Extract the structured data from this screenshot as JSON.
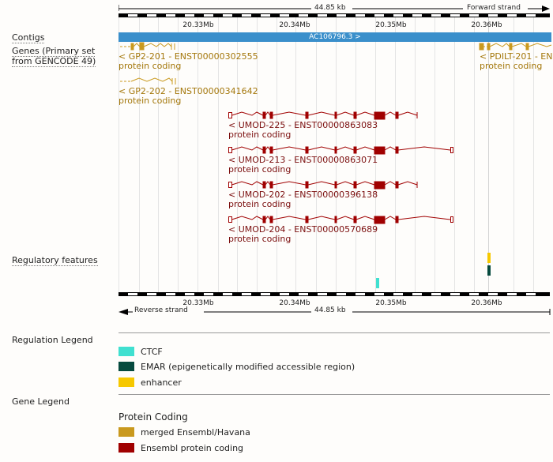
{
  "scale": {
    "span_label": "44.85 kb",
    "forward_strand": "Forward strand",
    "reverse_strand": "Reverse strand",
    "ticks": [
      "20.33Mb",
      "20.34Mb",
      "20.35Mb",
      "20.36Mb"
    ]
  },
  "tracks": {
    "contigs": "Contigs",
    "genes": "Genes (Primary set from GENCODE 49)",
    "regulatory": "Regulatory features"
  },
  "contig": {
    "label": "AC106796.3 >"
  },
  "genes": [
    {
      "name": "< GP2-201 - ENST00000302555",
      "biotype": "protein coding"
    },
    {
      "name": "< GP2-202 - ENST00000341642",
      "biotype": "protein coding"
    },
    {
      "name": "< PDILT-201 - ENS",
      "biotype": "protein coding"
    },
    {
      "name": "< UMOD-225 - ENST00000863083",
      "biotype": "protein coding"
    },
    {
      "name": "< UMOD-213 - ENST00000863071",
      "biotype": "protein coding"
    },
    {
      "name": "< UMOD-202 - ENST00000396138",
      "biotype": "protein coding"
    },
    {
      "name": "< UMOD-204 - ENST00000570689",
      "biotype": "protein coding"
    }
  ],
  "regulation_legend": {
    "title": "Regulation Legend",
    "items": [
      {
        "label": "CTCF",
        "color": "#40e0d0"
      },
      {
        "label": "EMAR (epigenetically modified accessible region)",
        "color": "#064a3e"
      },
      {
        "label": "enhancer",
        "color": "#f6c800"
      }
    ]
  },
  "gene_legend": {
    "title": "Gene Legend",
    "subtitle": "Protein Coding",
    "items": [
      {
        "label": "merged Ensembl/Havana",
        "color": "#c9991e"
      },
      {
        "label": "Ensembl protein coding",
        "color": "#a00000"
      }
    ]
  },
  "colors": {
    "contig": "#3a8fcb",
    "gp": "#c9991e",
    "umod": "#a00000"
  }
}
